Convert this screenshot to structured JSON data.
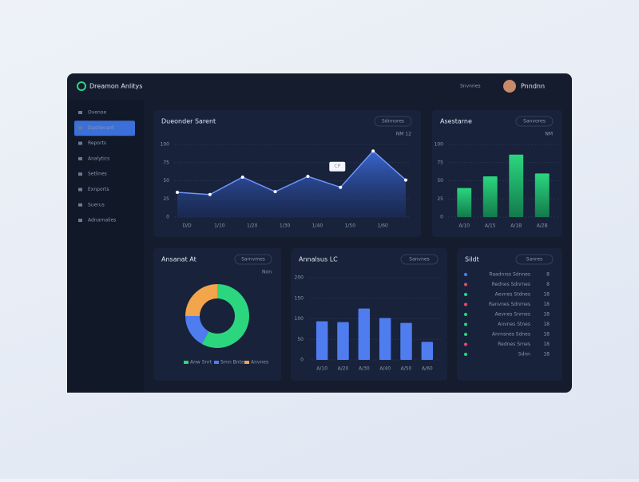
{
  "header": {
    "brand": "Dreamon Anlitys",
    "search": "Snvnnes",
    "user": "Pnndnn"
  },
  "sidebar": {
    "items": [
      "Ovenoe",
      "Dashboard",
      "Reports",
      "Analytics",
      "Setlines",
      "Exnports",
      "Suerus",
      "Adnarnalies"
    ],
    "active": 1
  },
  "panels": [
    {
      "title": "Dueonder Sarent",
      "button": "Sdnnores",
      "legend": "NM 12",
      "chart_data": {
        "type": "area",
        "color": "#3d6ee0",
        "categories": [
          "D/D",
          "1/10",
          "1/20",
          "1/30",
          "1/40",
          "1/50",
          "1/60",
          null
        ],
        "values": [
          34,
          31,
          55,
          35,
          56,
          41,
          91,
          51
        ],
        "ylim": [
          0,
          100
        ],
        "yticks": [
          0,
          25,
          50,
          75,
          100
        ],
        "grid": true,
        "annotation": "CP"
      }
    },
    {
      "title": "Asestarne",
      "button": "Sanvores",
      "legend": "NM",
      "chart_data": {
        "type": "bar",
        "color": "#22c27a",
        "categories": [
          "A/10",
          "A/15",
          "A/1B",
          "A/2B"
        ],
        "values": [
          40,
          56,
          86,
          60
        ],
        "ylim": [
          0,
          100
        ],
        "yticks": [
          0,
          25,
          50,
          75,
          100
        ],
        "grid": true
      }
    },
    {
      "title": "Ansanat At",
      "button": "Sarnvmes",
      "legend": "Non",
      "chart_data": {
        "type": "donut",
        "categories": [
          "Anw Snrt",
          "Srnn Bnte",
          "Anvnes"
        ],
        "values": [
          58,
          17,
          25
        ],
        "colors": [
          "#2bd67f",
          "#4f7df0",
          "#f2a54a"
        ]
      }
    },
    {
      "title": "Annalsus LC",
      "button": "Sanvnes",
      "chart_data": {
        "type": "bar",
        "color": "#4f7df0",
        "categories": [
          "A/10",
          "A/20",
          "A/30",
          "A/40",
          "A/50",
          "A/60"
        ],
        "values": [
          94,
          92,
          125,
          102,
          90,
          44
        ],
        "ylim": [
          0,
          200
        ],
        "yticks": [
          0,
          50,
          100,
          150,
          200
        ],
        "grid": true
      }
    },
    {
      "title": "Sildt",
      "button": "Sanres",
      "rows": [
        {
          "label": "Raadnrss Sdnnes",
          "value": "8",
          "color": "#4f7df0"
        },
        {
          "label": "Rednes Sdnrnes",
          "value": "8",
          "color": "#e0506a"
        },
        {
          "label": "Aevnes Stdnes",
          "value": "18",
          "color": "#2bd67f"
        },
        {
          "label": "Ranvnes Sdnrnes",
          "value": "18",
          "color": "#e0506a"
        },
        {
          "label": "Aevnes Snrnes",
          "value": "18",
          "color": "#2bd67f"
        },
        {
          "label": "Anvnes Stnes",
          "value": "18",
          "color": "#2bd67f"
        },
        {
          "label": "Anrnsnes Sdnes",
          "value": "18",
          "color": "#2bd67f"
        },
        {
          "label": "Rednes Srnes",
          "value": "18",
          "color": "#e0506a"
        },
        {
          "label": "Sdnn",
          "value": "18",
          "color": "#2bd67f"
        }
      ]
    }
  ]
}
